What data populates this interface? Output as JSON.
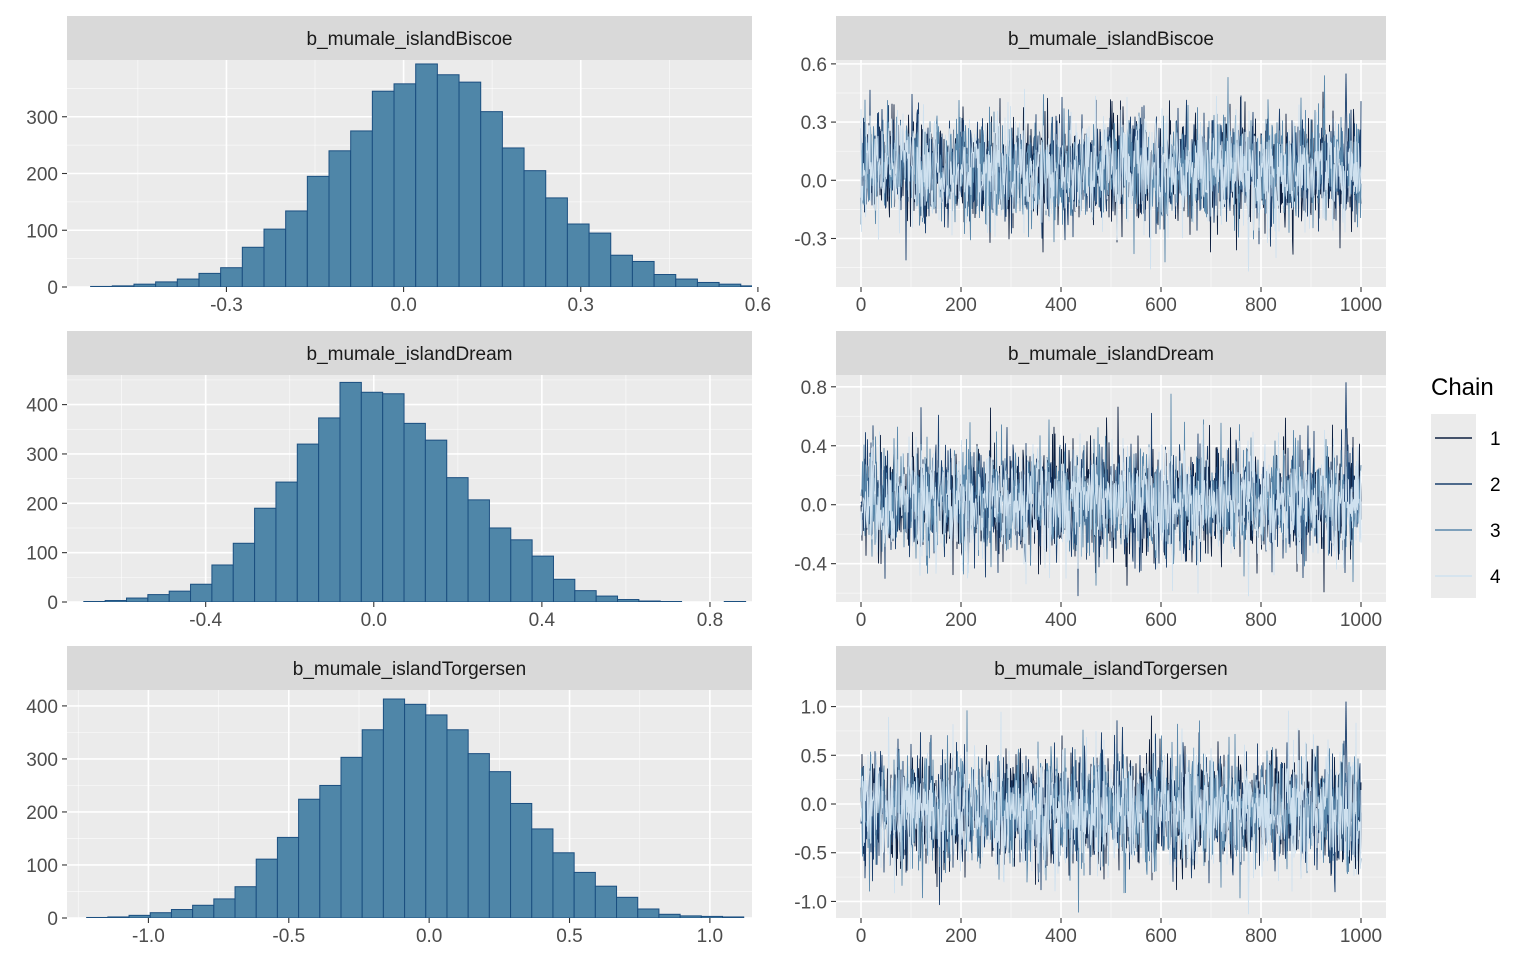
{
  "chart_data": [
    {
      "type": "bar",
      "title": "b_mumale_islandBiscoe",
      "xticks": [
        -0.3,
        0.0,
        0.3,
        0.6
      ],
      "xtick_labels": [
        "-0.3",
        "0.0",
        "0.3",
        "0.6"
      ],
      "xlim": [
        -0.57,
        0.59
      ],
      "yticks": [
        0,
        100,
        200,
        300
      ],
      "ylim": [
        0,
        400
      ],
      "bin_start": -0.53,
      "bin_width": 0.0367,
      "values": [
        1,
        2,
        5,
        9,
        14,
        24,
        34,
        70,
        102,
        134,
        195,
        240,
        275,
        345,
        358,
        393,
        374,
        361,
        309,
        245,
        205,
        157,
        111,
        95,
        56,
        45,
        22,
        14,
        8,
        5,
        2
      ]
    },
    {
      "type": "line",
      "title": "b_mumale_islandBiscoe",
      "xticks": [
        0,
        200,
        400,
        600,
        800,
        1000
      ],
      "xtick_labels": [
        "0",
        "200",
        "400",
        "600",
        "800",
        "1000"
      ],
      "xlim": [
        -50,
        1050
      ],
      "yticks": [
        -0.3,
        0.0,
        0.3,
        0.6
      ],
      "ytick_labels": [
        "-0.3",
        "0.0",
        "0.3",
        "0.6"
      ],
      "ylim": [
        -0.55,
        0.62
      ],
      "trace": {
        "center": 0.05,
        "sd": 0.14,
        "peak": 0.55,
        "trough": -0.47
      },
      "legend": "Chain"
    },
    {
      "type": "bar",
      "title": "b_mumale_islandDream",
      "xticks": [
        -0.4,
        0.0,
        0.4,
        0.8
      ],
      "xtick_labels": [
        "-0.4",
        "0.0",
        "0.4",
        "0.8"
      ],
      "xlim": [
        -0.73,
        0.9
      ],
      "yticks": [
        0,
        100,
        200,
        300,
        400
      ],
      "ylim": [
        0,
        460
      ],
      "bin_start": -0.69,
      "bin_width": 0.0508,
      "values": [
        1,
        3,
        8,
        15,
        22,
        36,
        75,
        119,
        190,
        243,
        320,
        373,
        445,
        425,
        422,
        362,
        328,
        252,
        207,
        150,
        126,
        93,
        46,
        23,
        12,
        5,
        2,
        1,
        0,
        0,
        1
      ]
    },
    {
      "type": "line",
      "title": "b_mumale_islandDream",
      "xticks": [
        0,
        200,
        400,
        600,
        800,
        1000
      ],
      "xtick_labels": [
        "0",
        "200",
        "400",
        "600",
        "800",
        "1000"
      ],
      "xlim": [
        -50,
        1050
      ],
      "yticks": [
        -0.4,
        0.0,
        0.4,
        0.8
      ],
      "ytick_labels": [
        "-0.4",
        "0.0",
        "0.4",
        "0.8"
      ],
      "ylim": [
        -0.66,
        0.88
      ],
      "trace": {
        "center": 0.02,
        "sd": 0.19,
        "peak": 0.83,
        "trough": -0.62
      },
      "legend": "Chain"
    },
    {
      "type": "bar",
      "title": "b_mumale_islandTorgersen",
      "xticks": [
        -1.0,
        -0.5,
        0.0,
        0.5,
        1.0
      ],
      "xtick_labels": [
        "-1.0",
        "-0.5",
        "0.0",
        "0.5",
        "1.0"
      ],
      "xlim": [
        -1.29,
        1.15
      ],
      "yticks": [
        0,
        100,
        200,
        300,
        400
      ],
      "ylim": [
        0,
        430
      ],
      "bin_start": -1.22,
      "bin_width": 0.0755,
      "values": [
        1,
        2,
        5,
        10,
        16,
        24,
        36,
        59,
        111,
        152,
        224,
        250,
        303,
        355,
        413,
        403,
        383,
        355,
        310,
        276,
        216,
        168,
        123,
        86,
        60,
        39,
        17,
        7,
        4,
        3,
        2
      ]
    },
    {
      "type": "line",
      "title": "b_mumale_islandTorgersen",
      "xticks": [
        0,
        200,
        400,
        600,
        800,
        1000
      ],
      "xtick_labels": [
        "0",
        "200",
        "400",
        "600",
        "800",
        "1000"
      ],
      "xlim": [
        -50,
        1050
      ],
      "yticks": [
        -1.0,
        -0.5,
        0.0,
        0.5,
        1.0
      ],
      "ytick_labels": [
        "-1.0",
        "-0.5",
        "0.0",
        "0.5",
        "1.0"
      ],
      "ylim": [
        -1.17,
        1.17
      ],
      "trace": {
        "center": -0.05,
        "sd": 0.3,
        "peak": 1.05,
        "trough": -1.13
      },
      "legend": "Chain"
    }
  ],
  "legend": {
    "title": "Chain",
    "items": [
      {
        "label": "1",
        "color": "#0d1f3f"
      },
      {
        "label": "2",
        "color": "#1b3f6d"
      },
      {
        "label": "3",
        "color": "#5a88ab"
      },
      {
        "label": "4",
        "color": "#cfe1ef"
      }
    ]
  },
  "colors": {
    "panel_bg": "#ebebeb",
    "grid": "#ffffff",
    "strip_bg": "#d9d9d9",
    "bar_fill": "#4f86a8",
    "bar_edge": "#1b4f80",
    "axis_text": "#4d4d4d"
  }
}
